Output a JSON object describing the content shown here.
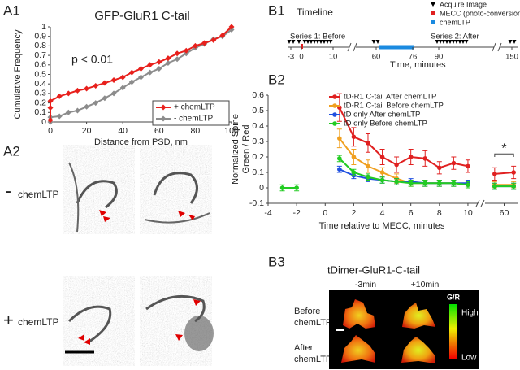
{
  "panels": {
    "a1": "A1",
    "a2": "A2",
    "b1": "B1",
    "b2": "B2",
    "b3": "B3"
  },
  "chart_data": [
    {
      "type": "line",
      "title": "GFP-GluR1 C-tail",
      "x_label": "Distance from PSD, nm",
      "y_label": "Cumulative Frequency",
      "annotation": "p < 0.01",
      "marker": "diamond",
      "legend": "lower right",
      "xlim": [
        0,
        100
      ],
      "ylim": [
        0,
        1
      ],
      "xticks": [
        0,
        20,
        40,
        60,
        80,
        100
      ],
      "yticks": [
        0,
        0.1,
        0.2,
        0.3,
        0.4,
        0.5,
        0.6,
        0.7,
        0.8,
        0.9,
        1
      ],
      "series": [
        {
          "name": "+ chemLTP",
          "color": "#e8201c",
          "x": [
            0,
            0,
            0,
            5,
            10,
            15,
            20,
            25,
            30,
            35,
            40,
            45,
            50,
            55,
            60,
            65,
            70,
            75,
            80,
            85,
            90,
            95,
            100
          ],
          "values": [
            0.02,
            0.15,
            0.22,
            0.27,
            0.3,
            0.33,
            0.35,
            0.38,
            0.41,
            0.44,
            0.47,
            0.52,
            0.56,
            0.6,
            0.63,
            0.67,
            0.72,
            0.75,
            0.8,
            0.83,
            0.86,
            0.91,
            1.0
          ]
        },
        {
          "name": "- chemLTP",
          "color": "#8c8c8c",
          "x": [
            0,
            0,
            5,
            10,
            15,
            20,
            25,
            30,
            35,
            40,
            45,
            50,
            55,
            60,
            65,
            70,
            75,
            80,
            85,
            90,
            95,
            100
          ],
          "values": [
            0,
            0.05,
            0.06,
            0.1,
            0.12,
            0.16,
            0.2,
            0.25,
            0.3,
            0.36,
            0.42,
            0.47,
            0.52,
            0.56,
            0.62,
            0.66,
            0.72,
            0.78,
            0.82,
            0.87,
            0.9,
            0.97
          ]
        }
      ]
    },
    {
      "type": "line",
      "x_label": "Time relative to MECC, minutes",
      "y_label": [
        "Normalized Spine",
        "Green / Red"
      ],
      "annotation": "*",
      "legend": "top",
      "xlim": [
        -4,
        63
      ],
      "xbreak": [
        10.8,
        57
      ],
      "ylim": [
        -0.1,
        0.6
      ],
      "xticks": [
        -4,
        -2,
        0,
        2,
        4,
        6,
        8,
        10,
        60
      ],
      "yticks": [
        -0.1,
        0,
        0.1,
        0.2,
        0.3,
        0.4,
        0.5,
        0.6
      ],
      "x": [
        -3,
        -2,
        0,
        1,
        2,
        3,
        4,
        5,
        6,
        7,
        8,
        9,
        10,
        58,
        62
      ],
      "series": [
        {
          "name": "tD-R1 C-tail After chemLTP",
          "color": "#e02020",
          "values": [
            null,
            null,
            null,
            0.52,
            0.33,
            0.29,
            0.2,
            0.15,
            0.2,
            0.19,
            0.13,
            0.16,
            0.14,
            0.09,
            0.1
          ],
          "errors": [
            null,
            null,
            null,
            0.09,
            0.06,
            0.06,
            0.05,
            0.05,
            0.05,
            0.05,
            0.04,
            0.04,
            0.04,
            0.04,
            0.04
          ]
        },
        {
          "name": "tD-R1 C-tail Before chemLTP",
          "color": "#f0a020",
          "values": [
            null,
            null,
            null,
            0.32,
            0.2,
            0.14,
            0.1,
            0.06,
            0.03,
            0.03,
            0.03,
            0.03,
            0.02,
            0.02,
            0.02
          ],
          "errors": [
            null,
            null,
            null,
            0.06,
            0.05,
            0.04,
            0.03,
            0.03,
            0.02,
            0.02,
            0.02,
            0.02,
            0.02,
            0.02,
            0.02
          ]
        },
        {
          "name": "tD only After chemLTP",
          "color": "#2050e0",
          "values": [
            null,
            null,
            null,
            0.12,
            0.08,
            0.06,
            0.05,
            0.04,
            0.04,
            0.03,
            0.03,
            0.03,
            0.03,
            0.01,
            0.01
          ],
          "errors": [
            null,
            null,
            null,
            0.02,
            0.02,
            0.02,
            0.02,
            0.02,
            0.02,
            0.02,
            0.02,
            0.02,
            0.02,
            0.02,
            0.02
          ]
        },
        {
          "name": "tD only Before chemLTP",
          "color": "#22cc22",
          "values": [
            0,
            0,
            null,
            0.19,
            0.1,
            0.07,
            0.05,
            0.04,
            0.03,
            0.03,
            0.03,
            0.03,
            0.02,
            0.01,
            0.01
          ],
          "errors": [
            0.02,
            0.02,
            null,
            0.02,
            0.02,
            0.02,
            0.02,
            0.02,
            0.02,
            0.02,
            0.02,
            0.02,
            0.02,
            0.02,
            0.02
          ]
        }
      ]
    }
  ],
  "em": {
    "minus_sign": "-",
    "minus_label": "chemLTP",
    "plus_sign": "+",
    "plus_label": "chemLTP"
  },
  "timeline": {
    "title": "Timeline",
    "legend": [
      "Acquire Image",
      "MECC (photo-conversion)",
      "chemLTP"
    ],
    "series_1": "Series 1: Before",
    "series_2": "Series 2: After",
    "ticks": [
      -3,
      0,
      10,
      60,
      76,
      90,
      150
    ],
    "x_label": "Time, minutes"
  },
  "imaging": {
    "title": "tDimer-GluR1-C-tail",
    "columns": [
      "-3min",
      "+10min"
    ],
    "rows": [
      [
        "Before",
        "chemLTP"
      ],
      [
        "After",
        "chemLTP"
      ]
    ],
    "colorbar": {
      "title": "G/R",
      "high": "High",
      "low": "Low"
    }
  }
}
